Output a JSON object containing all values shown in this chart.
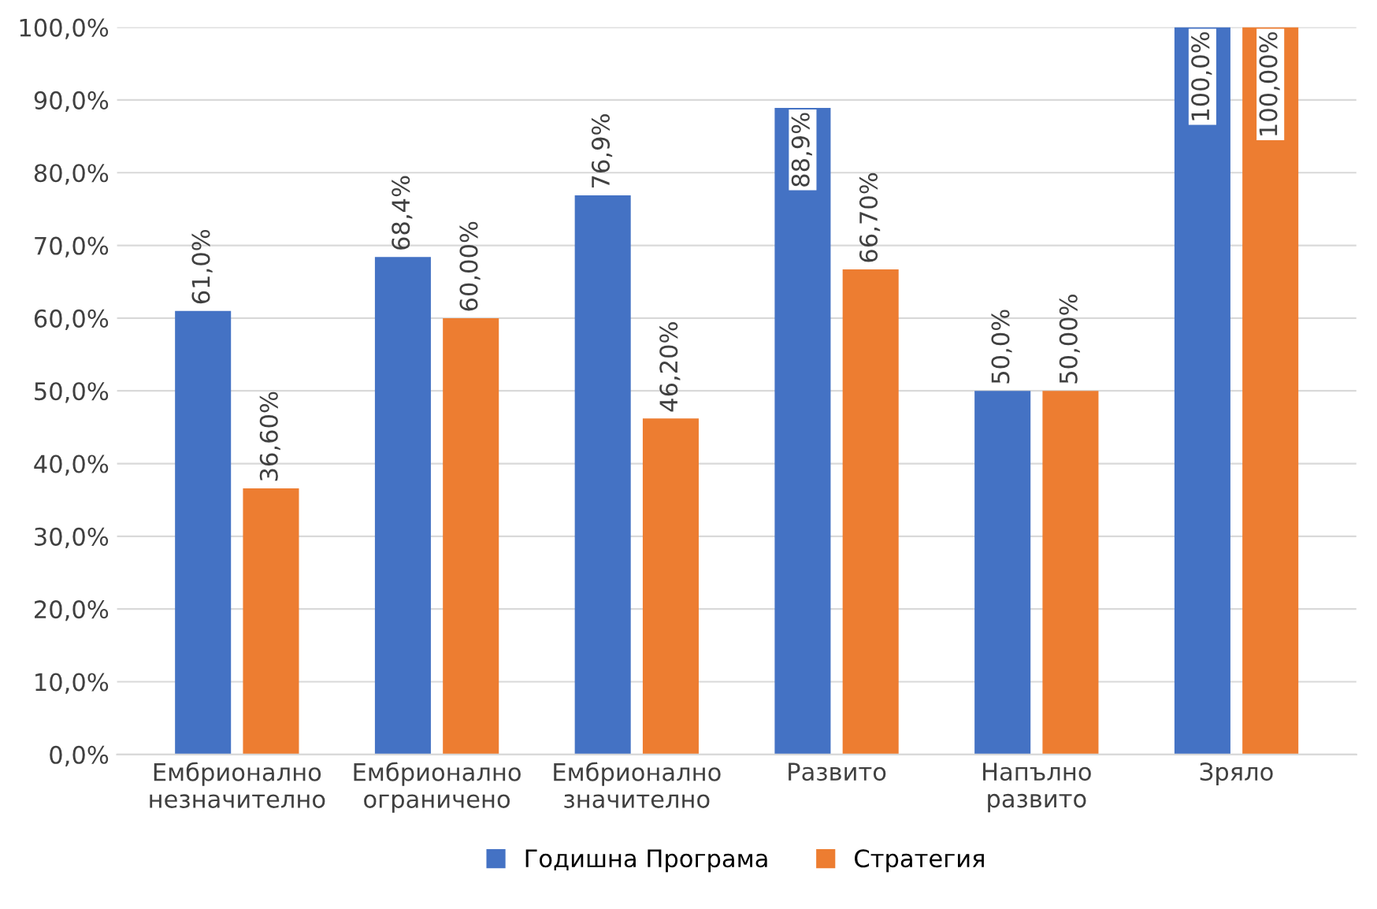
{
  "chart_data": {
    "type": "bar",
    "categories": [
      "Ембрионално\nнезначително",
      "Ембрионално\nограничено",
      "Ембрионално\nзначително",
      "Развито",
      "Напълно\nразвито",
      "Зряло"
    ],
    "series": [
      {
        "name": "Годишна Програма",
        "color": "#4472c4",
        "values": [
          61.0,
          68.4,
          76.9,
          88.9,
          50.0,
          100.0
        ],
        "value_labels": [
          "61,0%",
          "68,4%",
          "76,9%",
          "88,9%",
          "50,0%",
          "100,0%"
        ]
      },
      {
        "name": "Стратегия",
        "color": "#ed7d31",
        "values": [
          36.6,
          60.0,
          46.2,
          66.7,
          50.0,
          100.0
        ],
        "value_labels": [
          "36,60%",
          "60,00%",
          "46,20%",
          "66,70%",
          "50,00%",
          "100,00%"
        ]
      }
    ],
    "ylim": [
      0,
      100
    ],
    "yticks": [
      {
        "value": 0,
        "label": "0,0%"
      },
      {
        "value": 10,
        "label": "10,0%"
      },
      {
        "value": 20,
        "label": "20,0%"
      },
      {
        "value": 30,
        "label": "30,0%"
      },
      {
        "value": 40,
        "label": "40,0%"
      },
      {
        "value": 50,
        "label": "50,0%"
      },
      {
        "value": 60,
        "label": "60,0%"
      },
      {
        "value": 70,
        "label": "70,0%"
      },
      {
        "value": 80,
        "label": "80,0%"
      },
      {
        "value": 90,
        "label": "90,0%"
      },
      {
        "value": 100,
        "label": "100,0%"
      }
    ],
    "grid": "y",
    "legend": "bottom"
  }
}
